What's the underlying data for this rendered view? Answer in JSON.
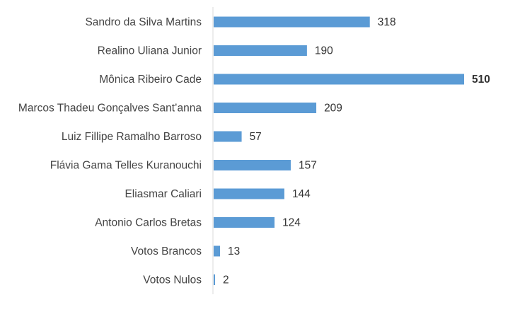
{
  "chart_data": {
    "type": "bar",
    "orientation": "horizontal",
    "categories": [
      "Sandro da Silva Martins",
      "Realino Uliana Junior",
      "Mônica Ribeiro Cade",
      "Marcos Thadeu Gonçalves Sant’anna",
      "Luiz Fillipe Ramalho Barroso",
      "Flávia Gama Telles Kuranouchi",
      "Eliasmar Caliari",
      "Antonio Carlos Bretas",
      "Votos Brancos",
      "Votos Nulos"
    ],
    "values": [
      318,
      190,
      510,
      209,
      57,
      157,
      144,
      124,
      13,
      2
    ],
    "data_labels": [
      "318",
      "190",
      "510",
      "209",
      "57",
      "157",
      "144",
      "124",
      "13",
      "2"
    ],
    "bold_label_index": 2,
    "title": "",
    "xlabel": "",
    "ylabel": "",
    "xlim": [
      0,
      510
    ],
    "grid": false,
    "legend": "none",
    "bar_color": "#5b9bd5",
    "axis_color": "#d9d9d9"
  }
}
